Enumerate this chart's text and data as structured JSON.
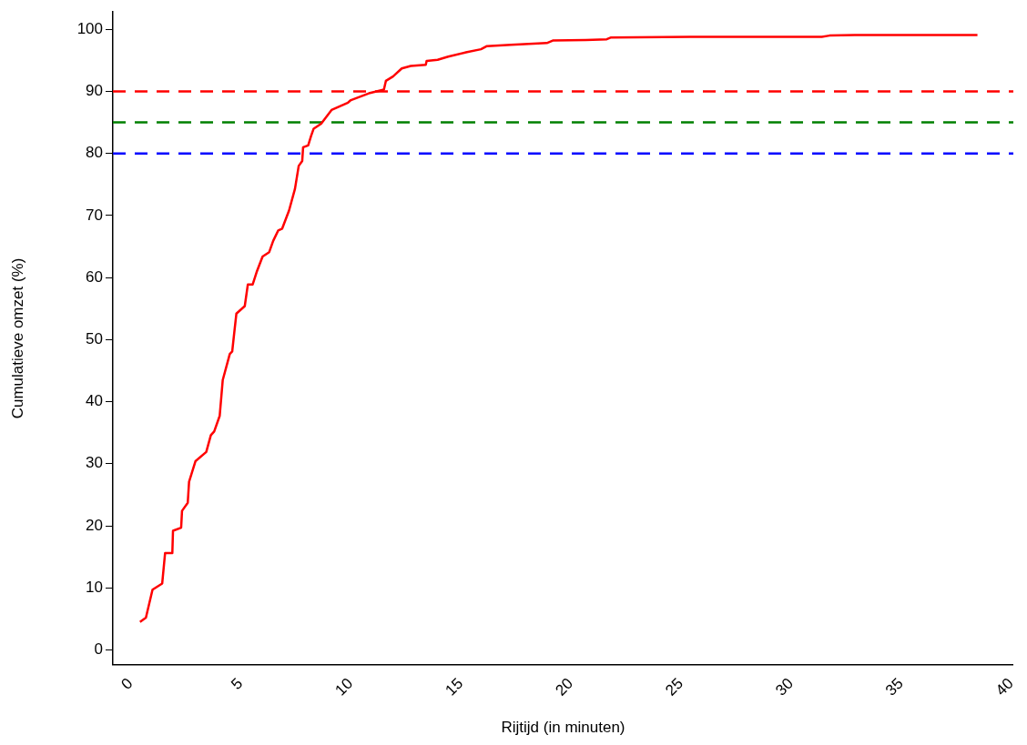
{
  "chart_data": {
    "type": "line",
    "xlabel": "Rijtijd (in minuten)",
    "ylabel": "Cumulatieve omzet (%)",
    "xlim": [
      -0.8,
      40.1
    ],
    "xticks": [
      0,
      5,
      10,
      15,
      20,
      25,
      30,
      35,
      40
    ],
    "ylim": [
      -2.4,
      102.8
    ],
    "yticks": [
      0,
      10,
      20,
      30,
      40,
      50,
      60,
      70,
      80,
      90,
      100
    ],
    "grid": false,
    "legend": false,
    "marker": "none",
    "line_style": "solid",
    "series": [
      {
        "color": "#ff0000",
        "x": [
          0.43,
          0.7,
          1.0,
          1.44,
          1.57,
          1.9,
          1.93,
          2.3,
          2.34,
          2.6,
          2.66,
          2.95,
          3.44,
          3.65,
          3.8,
          4.05,
          4.13,
          4.19,
          4.51,
          4.62,
          4.73,
          4.81,
          5.19,
          5.33,
          5.55,
          5.73,
          6.0,
          6.3,
          6.48,
          6.71,
          6.89,
          7.2,
          7.47,
          7.64,
          7.8,
          7.84,
          8.07,
          8.2,
          8.32,
          8.66,
          9.13,
          9.88,
          10.01,
          10.83,
          11.51,
          11.6,
          11.92,
          12.32,
          12.73,
          13.41,
          13.45,
          13.95,
          14.43,
          15.24,
          15.92,
          16.19,
          17.28,
          18.91,
          19.18,
          20.68,
          21.63,
          21.83,
          25.43,
          31.4,
          31.75,
          32.9,
          38.47
        ],
        "values": [
          4.5,
          5.2,
          9.7,
          10.7,
          15.6,
          15.6,
          19.2,
          19.7,
          22.4,
          23.7,
          27.1,
          30.4,
          31.9,
          34.6,
          35.2,
          37.7,
          41,
          43.5,
          47.7,
          48.1,
          51.7,
          54.2,
          55.4,
          58.9,
          58.9,
          60.9,
          63.4,
          64.1,
          65.9,
          67.6,
          67.9,
          70.8,
          74.3,
          78.0,
          78.8,
          81.0,
          81.3,
          82.8,
          84.0,
          84.8,
          87.0,
          88.2,
          88.6,
          89.7,
          90.3,
          91.7,
          92.4,
          93.7,
          94.1,
          94.3,
          94.9,
          95.1,
          95.6,
          96.3,
          96.8,
          97.3,
          97.5,
          97.8,
          98.2,
          98.3,
          98.4,
          98.7,
          98.8,
          98.8,
          99.0,
          99.1,
          99.1
        ]
      }
    ],
    "ref_lines": [
      {
        "axis": "y",
        "value": 90,
        "color": "#ff0000",
        "line_style": "dashed"
      },
      {
        "axis": "y",
        "value": 85,
        "color": "#008000",
        "line_style": "dashed"
      },
      {
        "axis": "y",
        "value": 80,
        "color": "#0000ff",
        "line_style": "dashed"
      }
    ]
  }
}
